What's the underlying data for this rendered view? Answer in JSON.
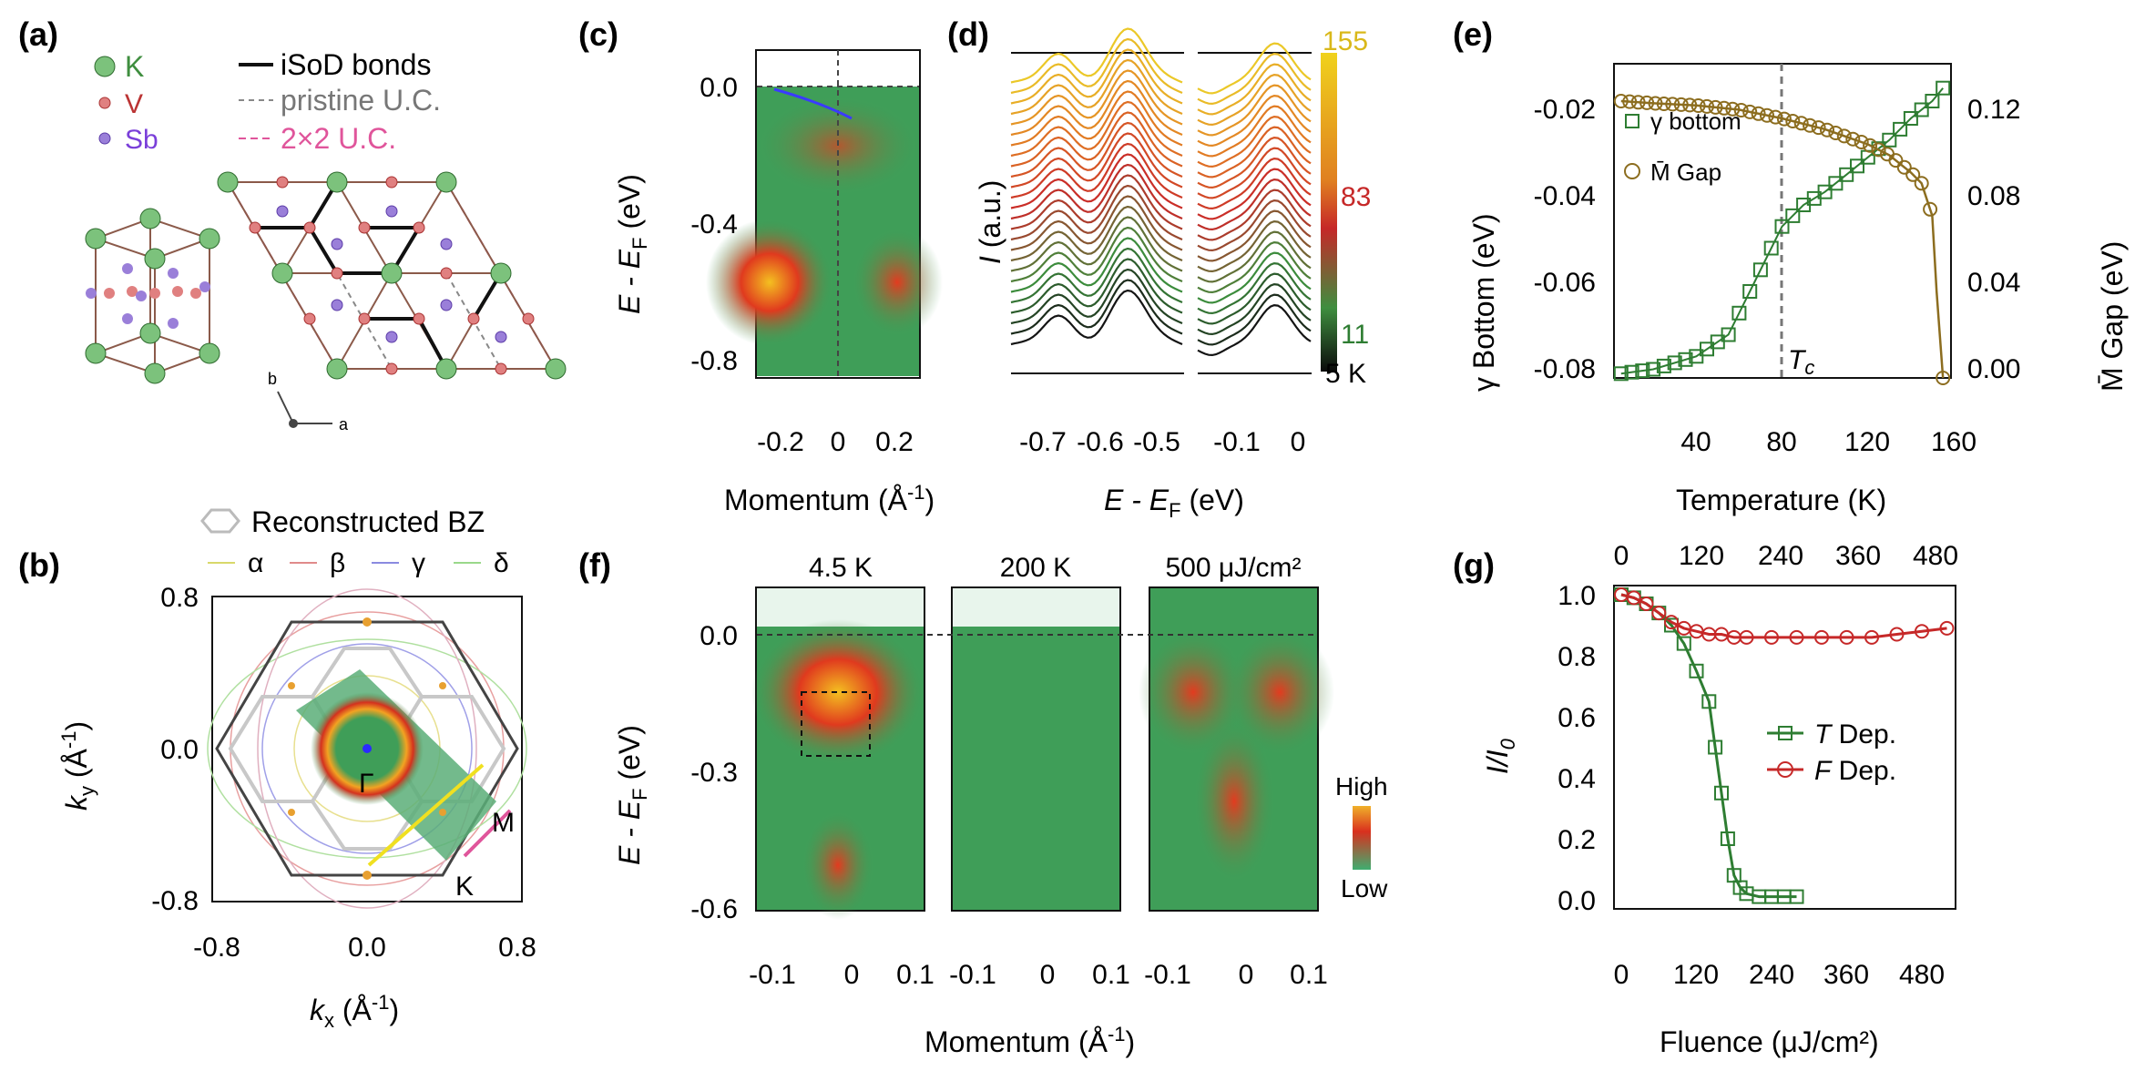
{
  "panels": {
    "a": {
      "label": "(a)",
      "legend": {
        "k": "K",
        "v": "V",
        "sb": "Sb",
        "isod": "iSoD bonds",
        "pristine": "pristine U.C.",
        "uc22": "2×2 U.C."
      },
      "axis_a": "a",
      "axis_b": "b"
    },
    "b": {
      "label": "(b)",
      "reconstructed": "Reconstructed BZ",
      "alpha": "α",
      "beta": "β",
      "gamma": "γ",
      "delta": "δ",
      "xticks": [
        "-0.8",
        "0.0",
        "0.8"
      ],
      "yticks": [
        "0.8",
        "0.0",
        "-0.8"
      ],
      "xlabel_k": "k",
      "xlabel_sub": "x",
      "xlabel_unit": " (Å",
      "xlabel_exp": "-1",
      "xlabel_close": ")",
      "ylabel_k": "k",
      "ylabel_sub": "y",
      "ylabel_unit": " (Å",
      "ylabel_exp": "-1",
      "ylabel_close": ")",
      "gamma_pt": "Γ",
      "m_pt": "M",
      "k_pt": "K"
    },
    "c": {
      "label": "(c)",
      "yticks": [
        "0.0",
        "-0.4",
        "-0.8"
      ],
      "xticks": [
        "-0.2",
        "0",
        "0.2"
      ],
      "ylabel": "E - E",
      "ylabel_sub": "F",
      "ylabel_unit": " (eV)",
      "xlabel": "Momentum (Å",
      "xlabel_exp": "-1",
      "xlabel_close": ")"
    },
    "d": {
      "label": "(d)",
      "xticks": [
        "-0.7",
        "-0.6",
        "-0.5",
        "-0.1",
        "0"
      ],
      "ylabel": "I",
      "ylabel_unit": " (a.u.)",
      "xlabel": "E - E",
      "xlabel_sub": "F",
      "xlabel_unit": " (eV)",
      "cb_top": "155",
      "cb_mid": "83",
      "cb_low": "11",
      "cb_unit": "5 K"
    },
    "e": {
      "label": "(e)",
      "yleft": [
        "-0.02",
        "-0.04",
        "-0.06",
        "-0.08"
      ],
      "yright": [
        "0.12",
        "0.08",
        "0.04",
        "0.00"
      ],
      "xticks": [
        "40",
        "80",
        "120",
        "160"
      ],
      "xlabel": "Temperature (K)",
      "ylabel_left": "γ Bottom (eV)",
      "ylabel_right": "M̄ Gap (eV)",
      "legend_gamma": "γ bottom",
      "legend_gap": "M̄ Gap",
      "tc": "T",
      "tc_sub": "c"
    },
    "f": {
      "label": "(f)",
      "sub1": "4.5 K",
      "sub2": "200 K",
      "sub3": "500 μJ/cm²",
      "yticks": [
        "0.0",
        "-0.3",
        "-0.6"
      ],
      "xticks": [
        "-0.1",
        "0",
        "0.1"
      ],
      "ylabel": "E - E",
      "ylabel_sub": "F",
      "ylabel_unit": " (eV)",
      "xlabel": "Momentum (Å",
      "xlabel_exp": "-1",
      "xlabel_close": ")",
      "cb_high": "High",
      "cb_low": "Low"
    },
    "g": {
      "label": "(g)",
      "xticks": [
        "0",
        "120",
        "240",
        "360",
        "480"
      ],
      "xticks_top": [
        "0",
        "120",
        "240",
        "360",
        "480"
      ],
      "yticks": [
        "1.0",
        "0.8",
        "0.6",
        "0.4",
        "0.2",
        "0.0"
      ],
      "xlabel": "Fluence (μJ/cm²)",
      "ylabel": "I/I",
      "ylabel_sub": "0",
      "legend_t": "T",
      "legend_t_rest": " Dep.",
      "legend_f": "F",
      "legend_f_rest": " Dep."
    }
  },
  "colors": {
    "green": "#2e7d32",
    "red": "#c62828",
    "olive": "#8c6d1f",
    "pink": "#e0559b",
    "blue": "#3a3aff"
  },
  "chart_data": [
    {
      "type": "scatter",
      "title": "(e)",
      "xlabel": "Temperature (K)",
      "ylabel": "γ Bottom (eV)",
      "ylim": [
        -0.08,
        -0.012
      ],
      "xlim": [
        5,
        160
      ],
      "series": [
        {
          "name": "γ bottom",
          "x": [
            5,
            20,
            40,
            55,
            65,
            75,
            80,
            90,
            100,
            110,
            120,
            130,
            140,
            150,
            155
          ],
          "y": [
            -0.079,
            -0.078,
            -0.075,
            -0.07,
            -0.06,
            -0.05,
            -0.045,
            -0.04,
            -0.037,
            -0.033,
            -0.029,
            -0.025,
            -0.02,
            -0.016,
            -0.013
          ]
        }
      ]
    },
    {
      "type": "scatter",
      "title": "(e) right",
      "xlabel": "Temperature (K)",
      "ylabel": "M̄ Gap (eV)",
      "ylim": [
        0,
        0.13
      ],
      "xlim": [
        5,
        160
      ],
      "series": [
        {
          "name": "M̄ Gap",
          "x": [
            5,
            20,
            40,
            60,
            80,
            100,
            120,
            130,
            140,
            145,
            150,
            152,
            155
          ],
          "y": [
            0.128,
            0.127,
            0.126,
            0.124,
            0.12,
            0.115,
            0.108,
            0.103,
            0.095,
            0.09,
            0.075,
            0.04,
            0.0
          ]
        }
      ]
    },
    {
      "type": "line",
      "title": "(g)",
      "xlabel": "Fluence (μJ/cm²)",
      "ylabel": "I/I0",
      "ylim": [
        0,
        1.0
      ],
      "xlim": [
        0,
        540
      ],
      "series": [
        {
          "name": "T Dep.",
          "x": [
            0,
            20,
            40,
            60,
            80,
            100,
            120,
            140,
            150,
            160,
            170,
            180,
            190,
            200,
            220,
            240,
            260,
            280
          ],
          "y": [
            1.0,
            0.99,
            0.97,
            0.94,
            0.9,
            0.84,
            0.75,
            0.65,
            0.5,
            0.35,
            0.2,
            0.08,
            0.04,
            0.02,
            0.01,
            0.01,
            0.01,
            0.01
          ]
        },
        {
          "name": "F Dep.",
          "x": [
            0,
            20,
            40,
            60,
            80,
            100,
            120,
            140,
            160,
            180,
            200,
            240,
            280,
            320,
            360,
            400,
            440,
            480,
            520
          ],
          "y": [
            1.0,
            0.99,
            0.97,
            0.94,
            0.91,
            0.89,
            0.88,
            0.87,
            0.87,
            0.86,
            0.86,
            0.86,
            0.86,
            0.86,
            0.86,
            0.86,
            0.87,
            0.88,
            0.89
          ]
        }
      ]
    }
  ]
}
